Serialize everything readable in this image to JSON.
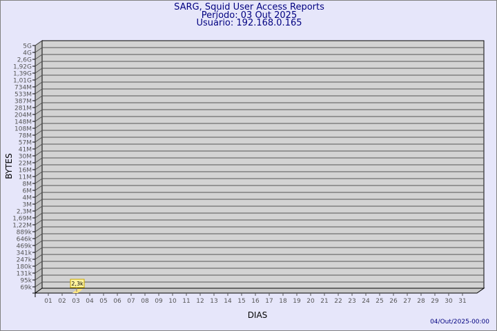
{
  "chart_data": {
    "type": "bar",
    "title": "SARG, Squid User Access Reports",
    "subtitle": [
      "Período: 03 Out 2025",
      "Usuário: 192.168.0.165"
    ],
    "xlabel": "DIAS",
    "ylabel": "BYTES",
    "y_scale": "log",
    "y_tick_labels": [
      "5G",
      "4G",
      "2,6G",
      "1,92G",
      "1,39G",
      "1,01G",
      "734M",
      "533M",
      "387M",
      "281M",
      "204M",
      "148M",
      "108M",
      "78M",
      "57M",
      "41M",
      "30M",
      "22M",
      "16M",
      "11M",
      "8M",
      "6M",
      "4M",
      "3M",
      "2,3M",
      "1,69M",
      "1,22M",
      "889k",
      "646k",
      "469k",
      "341k",
      "247k",
      "180k",
      "131k",
      "95k",
      "69k"
    ],
    "categories": [
      "01",
      "02",
      "03",
      "04",
      "05",
      "06",
      "07",
      "08",
      "09",
      "10",
      "11",
      "12",
      "13",
      "14",
      "15",
      "16",
      "17",
      "18",
      "19",
      "20",
      "21",
      "22",
      "23",
      "24",
      "25",
      "26",
      "27",
      "28",
      "29",
      "30",
      "31"
    ],
    "bars": [
      {
        "x": "03",
        "value": "2,3k"
      }
    ],
    "grid": true,
    "colors": {
      "wall": "#d3d3d3",
      "bar": "#ffe680",
      "label_bg": "#fff4a0",
      "title": "#000080"
    }
  },
  "footer": "04/Out/2025-00:00"
}
